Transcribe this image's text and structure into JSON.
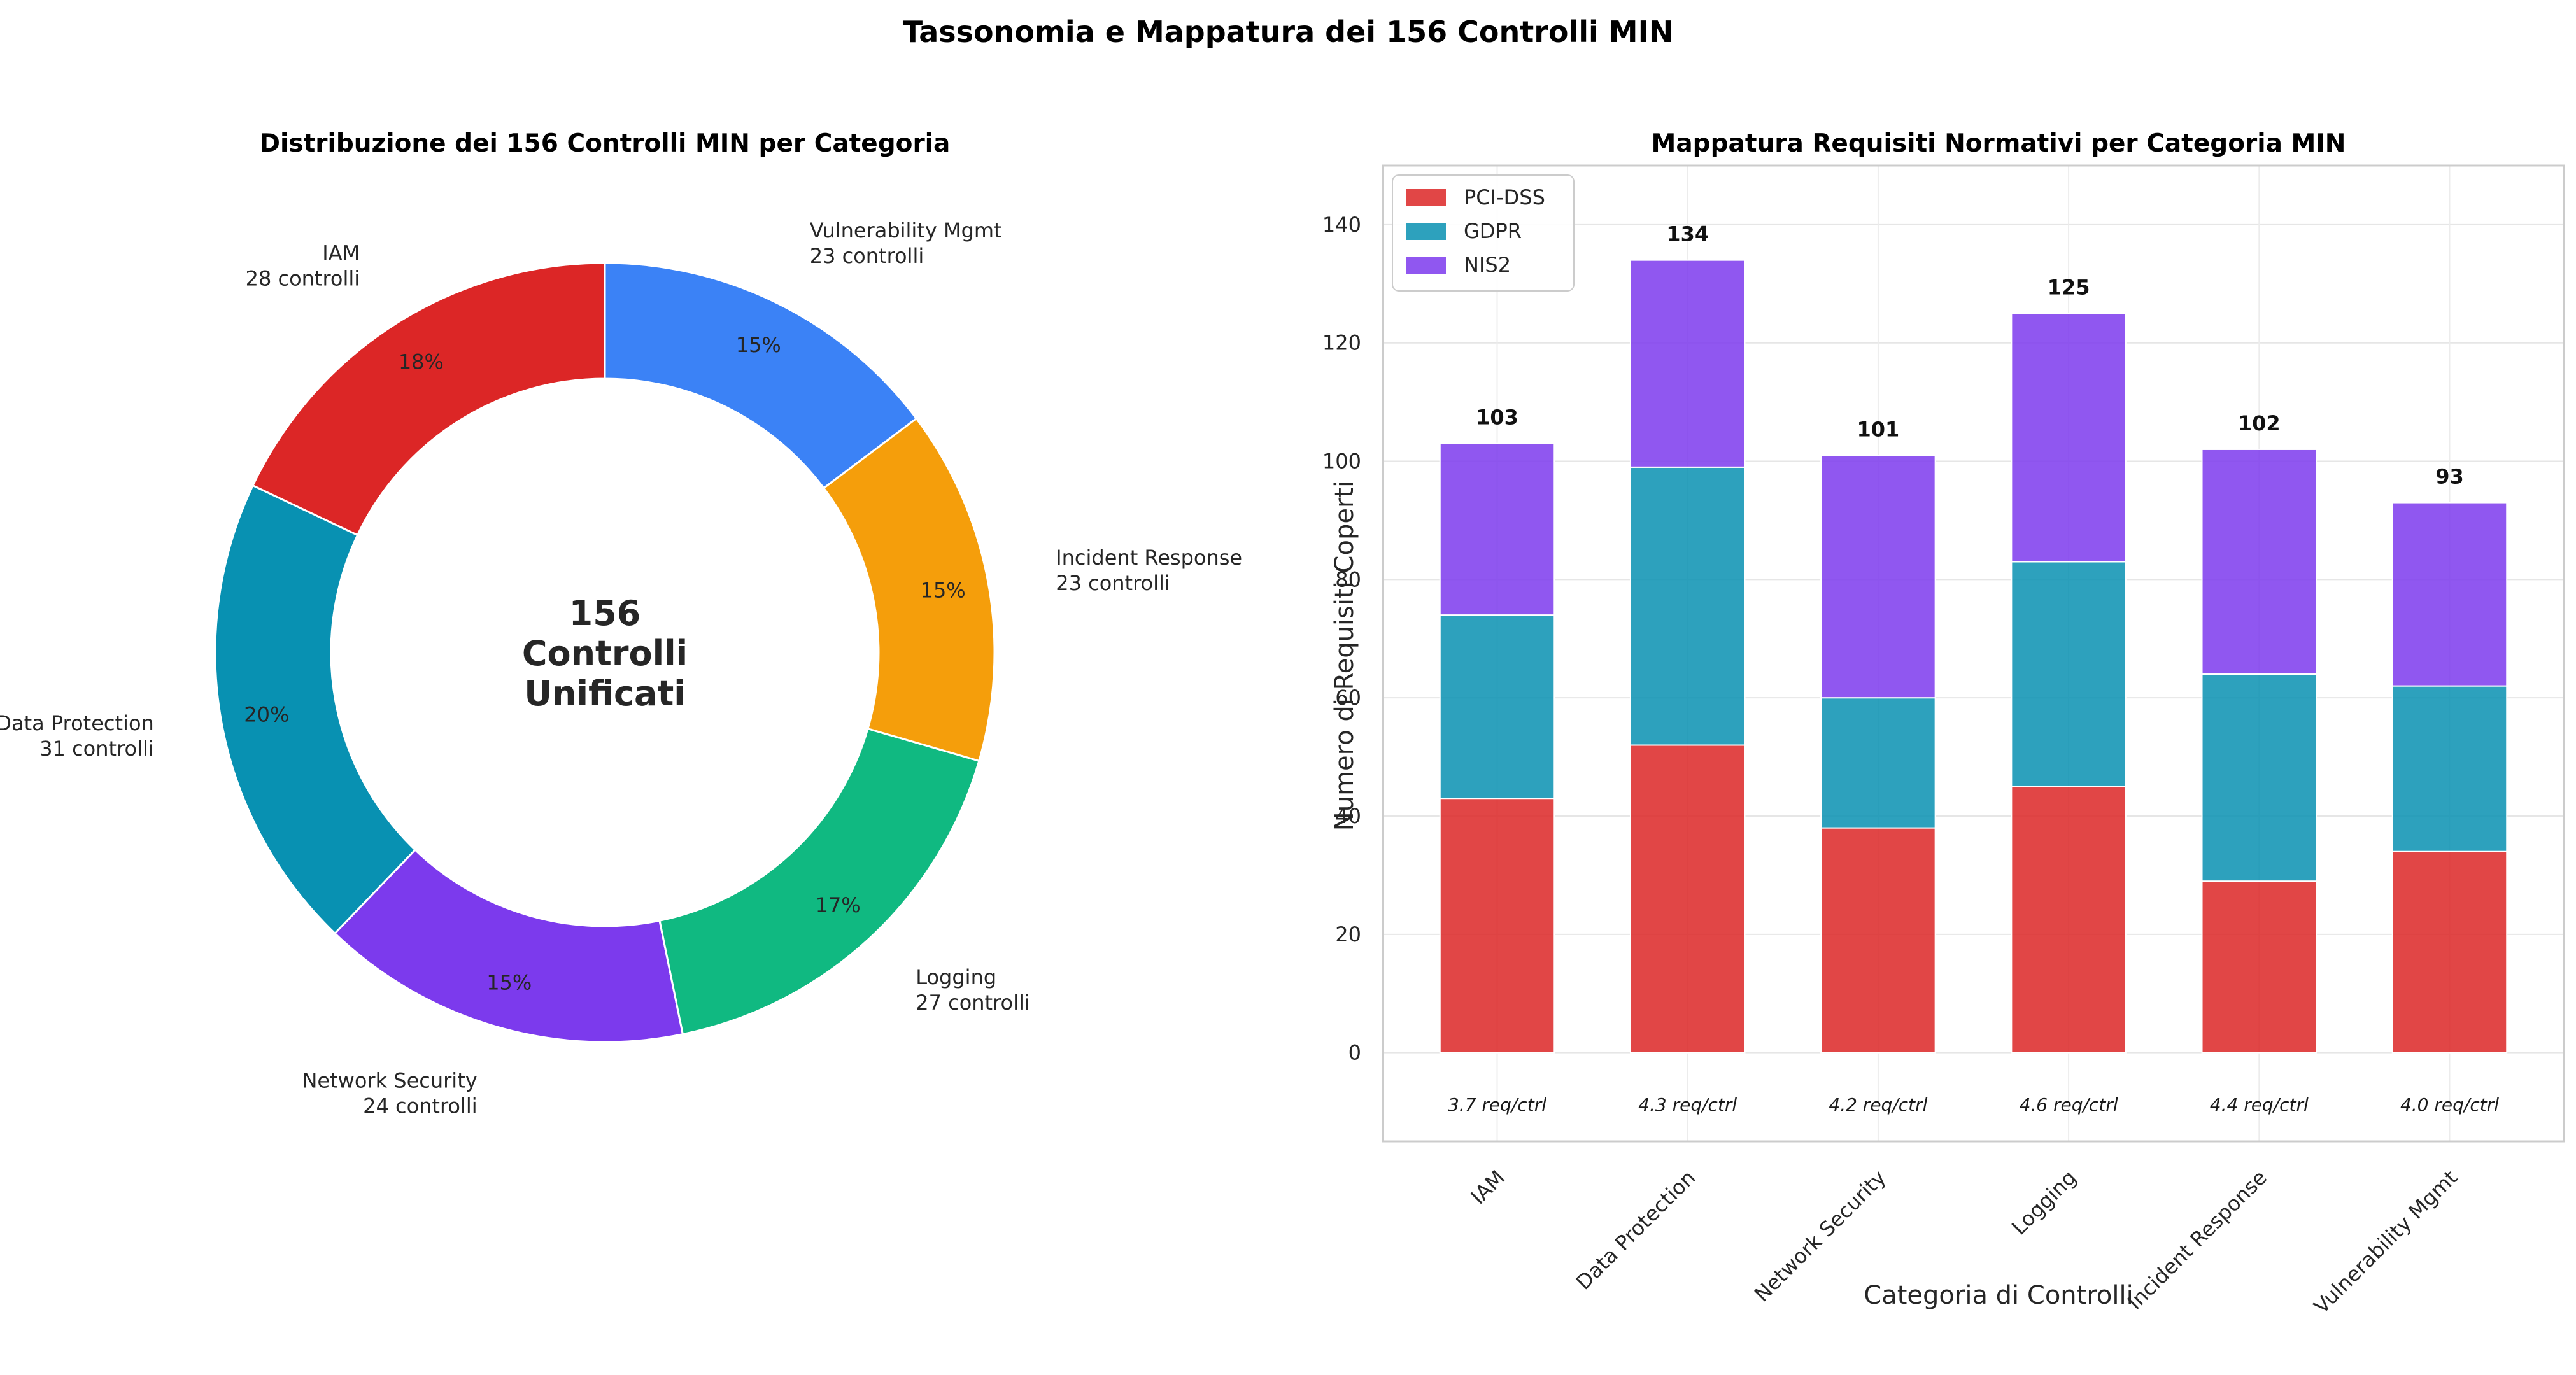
{
  "figure_title": "Tassonomia e Mappatura dei 156 Controlli MIN",
  "chart_data": [
    {
      "type": "pie",
      "title": "Distribuzione dei 156 Controlli MIN per Categoria",
      "center_text": [
        "156",
        "Controlli",
        "Unificati"
      ],
      "slices": [
        {
          "label": "IAM",
          "sublabel": "28 controlli",
          "value": 28,
          "pct": "18%",
          "color": "#dc2626"
        },
        {
          "label": "Data Protection",
          "sublabel": "31 controlli",
          "value": 31,
          "pct": "20%",
          "color": "#0891b2"
        },
        {
          "label": "Network Security",
          "sublabel": "24 controlli",
          "value": 24,
          "pct": "15%",
          "color": "#7c3aed"
        },
        {
          "label": "Logging",
          "sublabel": "27 controlli",
          "value": 27,
          "pct": "17%",
          "color": "#10b981"
        },
        {
          "label": "Incident Response",
          "sublabel": "23 controlli",
          "value": 23,
          "pct": "15%",
          "color": "#f59e0b"
        },
        {
          "label": "Vulnerability Mgmt",
          "sublabel": "23 controlli",
          "value": 23,
          "pct": "15%",
          "color": "#3b82f6"
        }
      ]
    },
    {
      "type": "bar",
      "stacked": true,
      "title": "Mappatura Requisiti Normativi per Categoria MIN",
      "xlabel": "Categoria di Controlli",
      "ylabel": "Numero di Requisiti Coperti",
      "categories": [
        "IAM",
        "Data Protection",
        "Network Security",
        "Logging",
        "Incident Response",
        "Vulnerability Mgmt"
      ],
      "series": [
        {
          "name": "PCI-DSS",
          "color": "#dc2626",
          "values": [
            43,
            52,
            38,
            45,
            29,
            34
          ]
        },
        {
          "name": "GDPR",
          "color": "#0891b2",
          "values": [
            31,
            47,
            22,
            38,
            35,
            28
          ]
        },
        {
          "name": "NIS2",
          "color": "#7c3aed",
          "values": [
            29,
            35,
            41,
            42,
            38,
            31
          ]
        }
      ],
      "totals": [
        103,
        134,
        101,
        125,
        102,
        93
      ],
      "ratio_labels": [
        "3.7 req/ctrl",
        "4.3 req/ctrl",
        "4.2 req/ctrl",
        "4.6 req/ctrl",
        "4.4 req/ctrl",
        "4.0 req/ctrl"
      ],
      "ylim": [
        -15,
        150
      ],
      "yticks": [
        0,
        20,
        40,
        60,
        80,
        100,
        120,
        140
      ],
      "grid": true,
      "legend_position": "top-left"
    }
  ]
}
